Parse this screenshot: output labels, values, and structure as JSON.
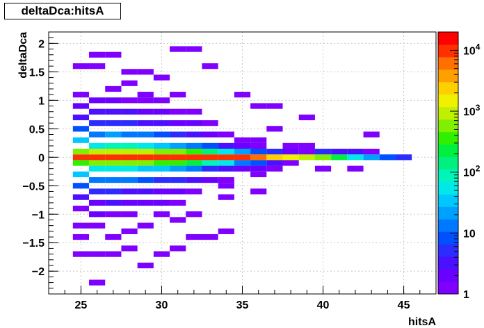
{
  "chart_data": {
    "type": "heatmap",
    "title": "deltaDca:hitsA",
    "xlabel": "hitsA",
    "ylabel": "deltaDca",
    "xlim": [
      23,
      47
    ],
    "ylim": [
      -2.4,
      2.2
    ],
    "xticks": [
      "25",
      "30",
      "35",
      "40",
      "45"
    ],
    "yticks": [
      "2",
      "1.5",
      "1",
      "0.5",
      "0",
      "−0.5",
      "−1",
      "−1.5",
      "−2"
    ],
    "grid": true,
    "z_scale": "log",
    "zlim": [
      1,
      20000
    ],
    "colorbar_ticks": [
      "1",
      "10",
      "10^2",
      "10^3",
      "10^4"
    ],
    "palette": [
      "#7f00ff",
      "#6a00ff",
      "#4a10ff",
      "#2c2cff",
      "#0050ff",
      "#0078ff",
      "#00a0ff",
      "#00c8ff",
      "#00e8e8",
      "#00f5b8",
      "#00f080",
      "#00f040",
      "#30f000",
      "#80f000",
      "#c0f000",
      "#f0f000",
      "#ffd000",
      "#ffa000",
      "#ff7000",
      "#ff3000",
      "#ff0000"
    ],
    "cells": [
      [
        25,
        0.0,
        8000
      ],
      [
        25,
        0.1,
        500
      ],
      [
        25,
        -0.1,
        300
      ],
      [
        25,
        0.3,
        40
      ],
      [
        25,
        -0.3,
        30
      ],
      [
        25,
        0.5,
        10
      ],
      [
        25,
        -0.5,
        8
      ],
      [
        25,
        0.7,
        4
      ],
      [
        25,
        -0.7,
        3
      ],
      [
        25,
        0.9,
        2
      ],
      [
        25,
        1.1,
        1
      ],
      [
        25,
        -0.9,
        1
      ],
      [
        25,
        1.6,
        1
      ],
      [
        25,
        -1.2,
        1
      ],
      [
        25,
        -1.4,
        1
      ],
      [
        25,
        -1.7,
        1
      ],
      [
        26,
        0.0,
        9000
      ],
      [
        26,
        0.1,
        800
      ],
      [
        26,
        -0.1,
        500
      ],
      [
        26,
        0.2,
        60
      ],
      [
        26,
        -0.2,
        50
      ],
      [
        26,
        0.4,
        15
      ],
      [
        26,
        -0.4,
        12
      ],
      [
        26,
        0.6,
        6
      ],
      [
        26,
        -0.6,
        5
      ],
      [
        26,
        0.8,
        3
      ],
      [
        26,
        -0.8,
        2
      ],
      [
        26,
        1.0,
        2
      ],
      [
        26,
        -1.0,
        2
      ],
      [
        26,
        1.6,
        1
      ],
      [
        26,
        1.8,
        1
      ],
      [
        26,
        -1.2,
        1
      ],
      [
        26,
        -1.7,
        1
      ],
      [
        26,
        -2.2,
        1
      ],
      [
        27,
        0.0,
        9000
      ],
      [
        27,
        0.1,
        1000
      ],
      [
        27,
        -0.1,
        600
      ],
      [
        27,
        0.2,
        80
      ],
      [
        27,
        -0.2,
        60
      ],
      [
        27,
        0.4,
        18
      ],
      [
        27,
        -0.4,
        14
      ],
      [
        27,
        0.6,
        6
      ],
      [
        27,
        -0.6,
        5
      ],
      [
        27,
        0.8,
        3
      ],
      [
        27,
        -0.8,
        3
      ],
      [
        27,
        1.0,
        2
      ],
      [
        27,
        1.2,
        1
      ],
      [
        27,
        1.8,
        1
      ],
      [
        27,
        -1.0,
        1
      ],
      [
        27,
        -1.4,
        1
      ],
      [
        27,
        -1.7,
        1
      ],
      [
        28,
        0.0,
        10000
      ],
      [
        28,
        0.1,
        900
      ],
      [
        28,
        -0.1,
        600
      ],
      [
        28,
        0.2,
        70
      ],
      [
        28,
        -0.2,
        50
      ],
      [
        28,
        0.4,
        15
      ],
      [
        28,
        -0.4,
        12
      ],
      [
        28,
        0.6,
        5
      ],
      [
        28,
        -0.6,
        4
      ],
      [
        28,
        0.8,
        3
      ],
      [
        28,
        -0.8,
        2
      ],
      [
        28,
        1.0,
        1
      ],
      [
        28,
        1.3,
        1
      ],
      [
        28,
        1.5,
        1
      ],
      [
        28,
        -1.0,
        1
      ],
      [
        28,
        -1.3,
        1
      ],
      [
        28,
        -1.6,
        1
      ],
      [
        29,
        0.0,
        10000
      ],
      [
        29,
        0.1,
        800
      ],
      [
        29,
        -0.1,
        500
      ],
      [
        29,
        0.2,
        50
      ],
      [
        29,
        -0.2,
        40
      ],
      [
        29,
        0.4,
        12
      ],
      [
        29,
        -0.4,
        10
      ],
      [
        29,
        0.6,
        4
      ],
      [
        29,
        -0.6,
        3
      ],
      [
        29,
        0.8,
        2
      ],
      [
        29,
        -0.8,
        2
      ],
      [
        29,
        1.0,
        1
      ],
      [
        29,
        1.1,
        1
      ],
      [
        29,
        1.5,
        1
      ],
      [
        29,
        -1.2,
        1
      ],
      [
        29,
        -1.9,
        1
      ],
      [
        30,
        0.0,
        12000
      ],
      [
        30,
        0.1,
        700
      ],
      [
        30,
        -0.1,
        450
      ],
      [
        30,
        0.2,
        40
      ],
      [
        30,
        -0.2,
        30
      ],
      [
        30,
        0.4,
        8
      ],
      [
        30,
        -0.4,
        6
      ],
      [
        30,
        0.6,
        3
      ],
      [
        30,
        -0.6,
        2
      ],
      [
        30,
        0.8,
        2
      ],
      [
        30,
        -0.8,
        2
      ],
      [
        30,
        1.0,
        1
      ],
      [
        30,
        1.4,
        1
      ],
      [
        30,
        -1.7,
        1
      ],
      [
        30,
        -1.0,
        1
      ],
      [
        31,
        0.0,
        12000
      ],
      [
        31,
        0.1,
        500
      ],
      [
        31,
        -0.1,
        300
      ],
      [
        31,
        0.2,
        25
      ],
      [
        31,
        -0.2,
        20
      ],
      [
        31,
        0.4,
        6
      ],
      [
        31,
        -0.4,
        5
      ],
      [
        31,
        0.6,
        2
      ],
      [
        31,
        -0.6,
        2
      ],
      [
        31,
        0.8,
        1
      ],
      [
        31,
        -0.8,
        1
      ],
      [
        31,
        1.1,
        1
      ],
      [
        31,
        1.9,
        1
      ],
      [
        31,
        -1.1,
        1
      ],
      [
        31,
        -1.6,
        1
      ],
      [
        32,
        0.0,
        11000
      ],
      [
        32,
        0.1,
        300
      ],
      [
        32,
        -0.1,
        200
      ],
      [
        32,
        0.2,
        15
      ],
      [
        32,
        -0.2,
        12
      ],
      [
        32,
        0.4,
        4
      ],
      [
        32,
        -0.4,
        3
      ],
      [
        32,
        0.6,
        2
      ],
      [
        32,
        -0.6,
        1
      ],
      [
        32,
        0.8,
        1
      ],
      [
        32,
        1.9,
        1
      ],
      [
        32,
        -1.0,
        1
      ],
      [
        32,
        -1.4,
        1
      ],
      [
        33,
        0.0,
        10000
      ],
      [
        33,
        0.1,
        150
      ],
      [
        33,
        -0.1,
        100
      ],
      [
        33,
        0.2,
        8
      ],
      [
        33,
        -0.2,
        6
      ],
      [
        33,
        0.4,
        2
      ],
      [
        33,
        -0.4,
        2
      ],
      [
        33,
        0.6,
        1
      ],
      [
        33,
        1.6,
        1
      ],
      [
        33,
        -1.4,
        1
      ],
      [
        34,
        0.0,
        9000
      ],
      [
        34,
        0.1,
        60
      ],
      [
        34,
        -0.1,
        50
      ],
      [
        34,
        0.2,
        3
      ],
      [
        34,
        -0.2,
        3
      ],
      [
        34,
        0.4,
        1
      ],
      [
        34,
        -0.4,
        1
      ],
      [
        34,
        -0.5,
        1
      ],
      [
        34,
        -0.7,
        1
      ],
      [
        34,
        -1.3,
        1
      ],
      [
        35,
        0.0,
        9000
      ],
      [
        35,
        0.1,
        20
      ],
      [
        35,
        -0.1,
        15
      ],
      [
        35,
        0.2,
        2
      ],
      [
        35,
        -0.2,
        2
      ],
      [
        35,
        0.3,
        1
      ],
      [
        35,
        1.1,
        1
      ],
      [
        36,
        0.0,
        7000
      ],
      [
        36,
        0.1,
        10
      ],
      [
        36,
        -0.1,
        8
      ],
      [
        36,
        0.2,
        1
      ],
      [
        36,
        -0.2,
        2
      ],
      [
        36,
        0.3,
        1
      ],
      [
        36,
        -0.3,
        1
      ],
      [
        36,
        0.9,
        1
      ],
      [
        36,
        -0.6,
        1
      ],
      [
        37,
        0.0,
        3000
      ],
      [
        37,
        0.1,
        5
      ],
      [
        37,
        -0.1,
        3
      ],
      [
        37,
        -0.2,
        1
      ],
      [
        37,
        0.5,
        1
      ],
      [
        37,
        0.9,
        1
      ],
      [
        38,
        0.0,
        1500
      ],
      [
        38,
        0.1,
        2
      ],
      [
        38,
        -0.1,
        1
      ],
      [
        38,
        0.2,
        1
      ],
      [
        39,
        0.0,
        800
      ],
      [
        39,
        0.2,
        1
      ],
      [
        39,
        0.1,
        1
      ],
      [
        39,
        0.7,
        1
      ],
      [
        40,
        0.0,
        600
      ],
      [
        40,
        0.1,
        5
      ],
      [
        40,
        -0.2,
        1
      ],
      [
        41,
        0.0,
        200
      ],
      [
        41,
        0.1,
        4
      ],
      [
        42,
        0.0,
        50
      ],
      [
        42,
        0.1,
        3
      ],
      [
        42,
        -0.2,
        1
      ],
      [
        43,
        0.0,
        25
      ],
      [
        43,
        0.1,
        1
      ],
      [
        43,
        0.4,
        1
      ],
      [
        44,
        0.0,
        8
      ],
      [
        45,
        0.0,
        6
      ]
    ]
  }
}
